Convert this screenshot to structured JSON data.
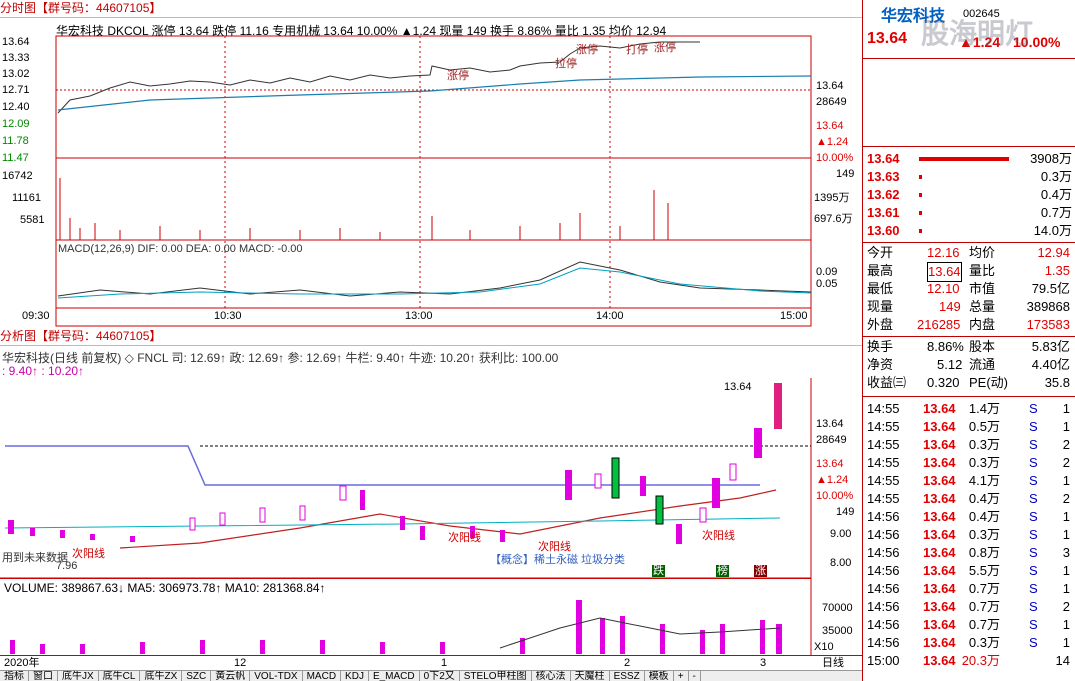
{
  "intraday": {
    "title": "分时图",
    "group": "【群号码：44607105】",
    "info": "华宏科技  DKCOL  涨停 13.64 跌停 11.16 专用机械 13.64 10.00% ▲1.24 现量 149 换手 8.86% 量比 1.35 均价 12.94",
    "price_ticks": [
      "13.64",
      "13.33",
      "13.02",
      "12.71",
      "12.40",
      "12.09",
      "11.78",
      "11.47"
    ],
    "vol_ticks": [
      "16742",
      "11161",
      "5581"
    ],
    "right_ticks": [
      "13.64",
      "28649",
      "13.64",
      "▲1.24",
      "10.00%",
      "149",
      "1395万",
      "697.6万",
      "0.09",
      "0.05"
    ],
    "macd_label": "MACD(12,26,9)  DIF: 0.00  DEA: 0.00  MACD: -0.00",
    "time_ticks": [
      "09:30",
      "10:30",
      "13:00",
      "14:00",
      "15:00"
    ],
    "annotations": [
      "涨停",
      "涨停",
      "拉停",
      "打停",
      "涨停"
    ]
  },
  "daily": {
    "title": "分析图",
    "group": "【群号码：44607105】",
    "info": "华宏科技(日线 前复权) ◇ FNCL  司: 12.69↑  政: 12.69↑  参: 12.69↑  牛栏: 9.40↑  牛迹: 10.20↑  获利比: 100.00",
    "info2": ": 9.40↑ : 10.20↑",
    "high_label": "13.64",
    "right_ticks": [
      "13.64",
      "28649",
      "13.64",
      "▲1.24",
      "10.00%",
      "149",
      "9.00",
      "8.00"
    ],
    "annotations": [
      "次阳线",
      "次阳线",
      "次阳线",
      "次阳线",
      "用到未来数据",
      "7.96",
      "【概念】稀土永磁 垃圾分类",
      "跌",
      "榜",
      "涨"
    ],
    "vol_label": "VOLUME: 389867.63↓  MA5: 306973.78↑  MA10: 281368.84↑",
    "vol_ticks": [
      "70000",
      "35000",
      "X10"
    ],
    "date_ticks": [
      "2020年",
      "12",
      "1",
      "2",
      "3"
    ],
    "period": "日线"
  },
  "quote": {
    "name": "华宏科技",
    "code": "002645",
    "price": "13.64",
    "change": "▲1.24",
    "pct": "10.00%",
    "watermark": "股海明灯",
    "bids": [
      {
        "p": "13.64",
        "v": "3908万"
      },
      {
        "p": "13.63",
        "v": "0.3万"
      },
      {
        "p": "13.62",
        "v": "0.4万"
      },
      {
        "p": "13.61",
        "v": "0.7万"
      },
      {
        "p": "13.60",
        "v": "14.0万"
      }
    ],
    "stats": [
      [
        "今开",
        "12.16",
        "均价",
        "12.94"
      ],
      [
        "最高",
        "13.64",
        "量比",
        "1.35"
      ],
      [
        "最低",
        "12.10",
        "市值",
        "79.5亿"
      ],
      [
        "现量",
        "149",
        "总量",
        "389868"
      ],
      [
        "外盘",
        "216285",
        "内盘",
        "173583"
      ]
    ],
    "stats2": [
      [
        "换手",
        "8.86%",
        "股本",
        "5.83亿"
      ],
      [
        "净资",
        "5.12",
        "流通",
        "4.40亿"
      ],
      [
        "收益㈢",
        "0.320",
        "PE(动)",
        "35.8"
      ]
    ],
    "ticks": [
      [
        "14:55",
        "13.64",
        "1.4万",
        "S",
        "1"
      ],
      [
        "14:55",
        "13.64",
        "0.5万",
        "S",
        "1"
      ],
      [
        "14:55",
        "13.64",
        "0.3万",
        "S",
        "2"
      ],
      [
        "14:55",
        "13.64",
        "0.3万",
        "S",
        "2"
      ],
      [
        "14:55",
        "13.64",
        "4.1万",
        "S",
        "1"
      ],
      [
        "14:55",
        "13.64",
        "0.4万",
        "S",
        "2"
      ],
      [
        "14:56",
        "13.64",
        "0.4万",
        "S",
        "1"
      ],
      [
        "14:56",
        "13.64",
        "0.3万",
        "S",
        "1"
      ],
      [
        "14:56",
        "13.64",
        "0.8万",
        "S",
        "3"
      ],
      [
        "14:56",
        "13.64",
        "5.5万",
        "S",
        "1"
      ],
      [
        "14:56",
        "13.64",
        "0.7万",
        "S",
        "1"
      ],
      [
        "14:56",
        "13.64",
        "0.7万",
        "S",
        "2"
      ],
      [
        "14:56",
        "13.64",
        "0.7万",
        "S",
        "1"
      ],
      [
        "14:56",
        "13.64",
        "0.3万",
        "S",
        "1"
      ],
      [
        "15:00",
        "13.64",
        "20.3万",
        "",
        "14"
      ]
    ]
  },
  "tabs": [
    "指标",
    "窗口",
    "底牛JX",
    "底牛CL",
    "底牛ZX",
    "SZC",
    "黄云帆",
    "VOL-TDX",
    "MACD",
    "KDJ",
    "E_MACD",
    "0下2又",
    "STELO甲柱图",
    "核心法",
    "天魔柱",
    "ESSZ",
    "模板",
    "+",
    "-"
  ]
}
